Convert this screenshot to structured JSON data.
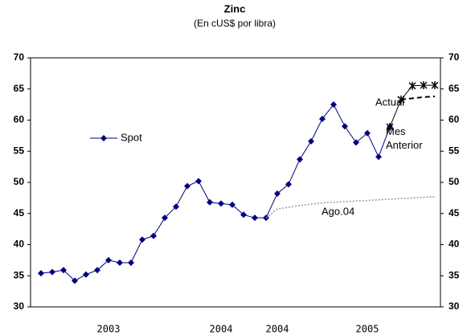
{
  "chart_data": {
    "type": "line",
    "title": "Zinc",
    "subtitle": "(En cUS$ por libra)",
    "categories": [
      null,
      null,
      null,
      null,
      null,
      null,
      "2003",
      null,
      null,
      null,
      null,
      null,
      null,
      null,
      null,
      null,
      "2004",
      null,
      null,
      null,
      null,
      "2004",
      null,
      null,
      null,
      null,
      null,
      null,
      null,
      "2005",
      null,
      null,
      null,
      null,
      null,
      null
    ],
    "series": [
      {
        "name": "Spot",
        "color": "#000080",
        "marker": "diamond",
        "dash": "solid",
        "values": [
          35.4,
          35.6,
          35.9,
          34.2,
          35.2,
          35.9,
          37.5,
          37.1,
          37.1,
          40.8,
          41.4,
          44.3,
          46.1,
          49.4,
          50.2,
          46.8,
          46.6,
          46.4,
          44.8,
          44.3,
          44.3,
          48.2,
          49.7,
          53.7,
          56.6,
          60.2,
          62.5,
          59.0,
          56.4,
          57.9,
          54.1,
          58.9,
          null,
          null,
          null,
          null
        ]
      },
      {
        "name": "Actual",
        "color": "#000000",
        "marker": "star",
        "dash": "solid",
        "values": [
          null,
          null,
          null,
          null,
          null,
          null,
          null,
          null,
          null,
          null,
          null,
          null,
          null,
          null,
          null,
          null,
          null,
          null,
          null,
          null,
          null,
          null,
          null,
          null,
          null,
          null,
          null,
          null,
          null,
          null,
          null,
          58.9,
          63.3,
          65.5,
          65.6,
          65.6
        ]
      },
      {
        "name": "Mes Anterior",
        "color": "#000000",
        "marker": "none",
        "dash": "dashed",
        "values": [
          null,
          null,
          null,
          null,
          null,
          null,
          null,
          null,
          null,
          null,
          null,
          null,
          null,
          null,
          null,
          null,
          null,
          null,
          null,
          null,
          null,
          null,
          null,
          null,
          null,
          null,
          null,
          null,
          null,
          null,
          null,
          null,
          63.3,
          63.5,
          63.7,
          63.8
        ]
      },
      {
        "name": "Ago.04",
        "color": "#999999",
        "marker": "none",
        "dash": "dotted",
        "values": [
          null,
          null,
          null,
          null,
          null,
          null,
          null,
          null,
          null,
          null,
          null,
          null,
          null,
          null,
          null,
          null,
          null,
          null,
          null,
          null,
          44.3,
          45.7,
          46.0,
          46.3,
          46.5,
          46.7,
          46.8,
          46.9,
          47.0,
          47.1,
          47.2,
          47.3,
          47.4,
          47.5,
          47.6,
          47.7
        ]
      }
    ],
    "ylim": [
      30,
      70
    ],
    "yticks": [
      30,
      35,
      40,
      45,
      50,
      55,
      60,
      65,
      70
    ],
    "y2lim": [
      30,
      70
    ],
    "y2ticks": [
      30,
      35,
      40,
      45,
      50,
      55,
      60,
      65,
      70
    ]
  }
}
